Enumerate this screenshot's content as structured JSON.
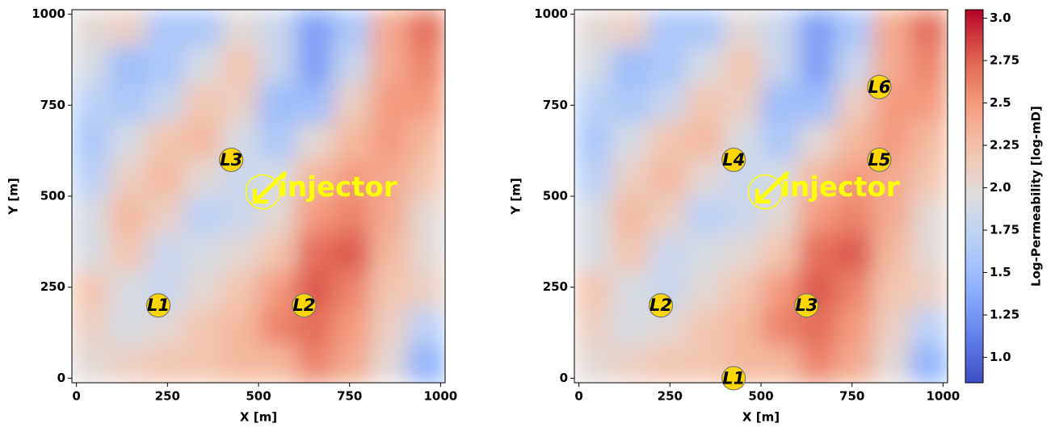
{
  "chart_data": [
    {
      "type": "heatmap",
      "xlabel": "X [m]",
      "ylabel": "Y [m]",
      "xlim": [
        -12.5,
        1012.5
      ],
      "ylim": [
        -12.5,
        1012.5
      ],
      "xticks": [
        0,
        250,
        500,
        750,
        1000
      ],
      "yticks": [
        0,
        250,
        500,
        750,
        1000
      ],
      "x_bins": [
        -12.5,
        90,
        192.5,
        295,
        397.5,
        500,
        602.5,
        705,
        807.5,
        910,
        1012.5
      ],
      "y_bins": [
        -12.5,
        90,
        192.5,
        295,
        397.5,
        500,
        602.5,
        705,
        807.5,
        910,
        1012.5
      ],
      "z": [
        [
          2.0,
          2.1,
          2.2,
          2.2,
          2.3,
          2.3,
          2.6,
          2.4,
          2.0,
          1.4
        ],
        [
          2.1,
          1.9,
          2.0,
          2.2,
          2.3,
          2.6,
          2.7,
          2.5,
          2.1,
          1.7
        ],
        [
          2.2,
          1.9,
          1.8,
          2.0,
          2.2,
          2.5,
          2.8,
          2.6,
          2.2,
          2.1
        ],
        [
          1.9,
          2.2,
          1.8,
          1.9,
          2.0,
          2.2,
          2.7,
          2.8,
          2.3,
          2.0
        ],
        [
          1.9,
          2.3,
          2.1,
          1.7,
          1.8,
          2.0,
          2.5,
          2.6,
          2.4,
          2.0
        ],
        [
          1.7,
          2.1,
          2.3,
          2.0,
          1.8,
          1.9,
          2.3,
          2.5,
          2.4,
          2.2
        ],
        [
          1.6,
          1.9,
          2.2,
          2.3,
          1.9,
          1.6,
          2.0,
          2.3,
          2.5,
          2.3
        ],
        [
          1.7,
          1.6,
          1.8,
          2.2,
          2.1,
          1.5,
          1.5,
          2.1,
          2.5,
          2.5
        ],
        [
          1.9,
          1.5,
          1.6,
          1.9,
          2.2,
          1.8,
          1.3,
          1.8,
          2.4,
          2.6
        ],
        [
          2.0,
          2.1,
          1.6,
          1.6,
          2.0,
          1.8,
          1.3,
          1.6,
          2.4,
          2.7
        ]
      ],
      "zlim": [
        0.85,
        3.05
      ],
      "colormap": "coolwarm",
      "wells": [
        {
          "label": "L1",
          "x": 225,
          "y": 200
        },
        {
          "label": "L2",
          "x": 625,
          "y": 200
        },
        {
          "label": "L3",
          "x": 425,
          "y": 600
        }
      ],
      "injector": {
        "label": "injector",
        "x": 512,
        "y": 512
      }
    },
    {
      "type": "heatmap",
      "xlabel": "X [m]",
      "ylabel": "Y [m]",
      "xlim": [
        -12.5,
        1012.5
      ],
      "ylim": [
        -12.5,
        1012.5
      ],
      "xticks": [
        0,
        250,
        500,
        750,
        1000
      ],
      "yticks": [
        0,
        250,
        500,
        750,
        1000
      ],
      "x_bins": [
        -12.5,
        90,
        192.5,
        295,
        397.5,
        500,
        602.5,
        705,
        807.5,
        910,
        1012.5
      ],
      "y_bins": [
        -12.5,
        90,
        192.5,
        295,
        397.5,
        500,
        602.5,
        705,
        807.5,
        910,
        1012.5
      ],
      "z": [
        [
          2.0,
          2.1,
          2.2,
          2.2,
          2.3,
          2.3,
          2.6,
          2.4,
          2.0,
          1.4
        ],
        [
          2.1,
          1.9,
          2.0,
          2.2,
          2.3,
          2.6,
          2.7,
          2.5,
          2.1,
          1.7
        ],
        [
          2.2,
          1.9,
          1.8,
          2.0,
          2.2,
          2.5,
          2.8,
          2.6,
          2.2,
          2.1
        ],
        [
          1.9,
          2.2,
          1.8,
          1.9,
          2.0,
          2.2,
          2.7,
          2.8,
          2.3,
          2.0
        ],
        [
          1.9,
          2.3,
          2.1,
          1.7,
          1.8,
          2.0,
          2.5,
          2.6,
          2.4,
          2.0
        ],
        [
          1.7,
          2.1,
          2.3,
          2.0,
          1.8,
          1.9,
          2.3,
          2.5,
          2.4,
          2.2
        ],
        [
          1.6,
          1.9,
          2.2,
          2.3,
          1.9,
          1.6,
          2.0,
          2.3,
          2.5,
          2.3
        ],
        [
          1.7,
          1.6,
          1.8,
          2.2,
          2.1,
          1.5,
          1.5,
          2.1,
          2.5,
          2.5
        ],
        [
          1.9,
          1.5,
          1.6,
          1.9,
          2.2,
          1.8,
          1.3,
          1.8,
          2.4,
          2.6
        ],
        [
          2.0,
          2.1,
          1.6,
          1.6,
          2.0,
          1.8,
          1.3,
          1.6,
          2.4,
          2.7
        ]
      ],
      "zlim": [
        0.85,
        3.05
      ],
      "colormap": "coolwarm",
      "wells": [
        {
          "label": "L1",
          "x": 425,
          "y": 0
        },
        {
          "label": "L2",
          "x": 225,
          "y": 200
        },
        {
          "label": "L3",
          "x": 625,
          "y": 200
        },
        {
          "label": "L4",
          "x": 425,
          "y": 600
        },
        {
          "label": "L5",
          "x": 825,
          "y": 600
        },
        {
          "label": "L6",
          "x": 825,
          "y": 800
        }
      ],
      "injector": {
        "label": "injector",
        "x": 512,
        "y": 512
      },
      "colorbar": {
        "label": "Log-Permeability [log-mD]",
        "ticks": [
          {
            "value": 1,
            "label": "1.0"
          },
          1.25,
          1.5,
          1.75,
          {
            "value": 2,
            "label": "2.0"
          },
          2.25,
          2.5,
          2.75,
          {
            "value": 3,
            "label": "3.0"
          }
        ]
      }
    }
  ]
}
